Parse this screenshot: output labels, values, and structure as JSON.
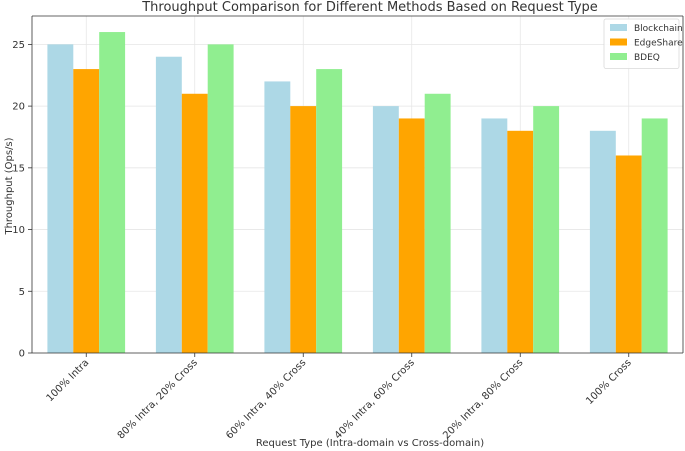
{
  "chart_data": {
    "type": "bar",
    "title": "Throughput Comparison for Different Methods Based on Request Type",
    "xlabel": "Request Type (Intra-domain vs Cross-domain)",
    "ylabel": "Throughput (Ops/s)",
    "ylim": [
      0,
      27.3
    ],
    "yticks": [
      0,
      5,
      10,
      15,
      20,
      25
    ],
    "grid": true,
    "legend_position": "top-right",
    "categories": [
      "100% Intra",
      "80% Intra, 20% Cross",
      "60% Intra, 40% Cross",
      "40% Intra, 60% Cross",
      "20% Intra, 80% Cross",
      "100% Cross"
    ],
    "series": [
      {
        "name": "Blockchain",
        "color": "#add8e6",
        "values": [
          25,
          24,
          22,
          20,
          19,
          18
        ]
      },
      {
        "name": "EdgeShare",
        "color": "#ffa500",
        "values": [
          23,
          21,
          20,
          19,
          18,
          16
        ]
      },
      {
        "name": "BDEQ",
        "color": "#90ee90",
        "values": [
          26,
          25,
          23,
          21,
          20,
          19
        ]
      }
    ]
  }
}
